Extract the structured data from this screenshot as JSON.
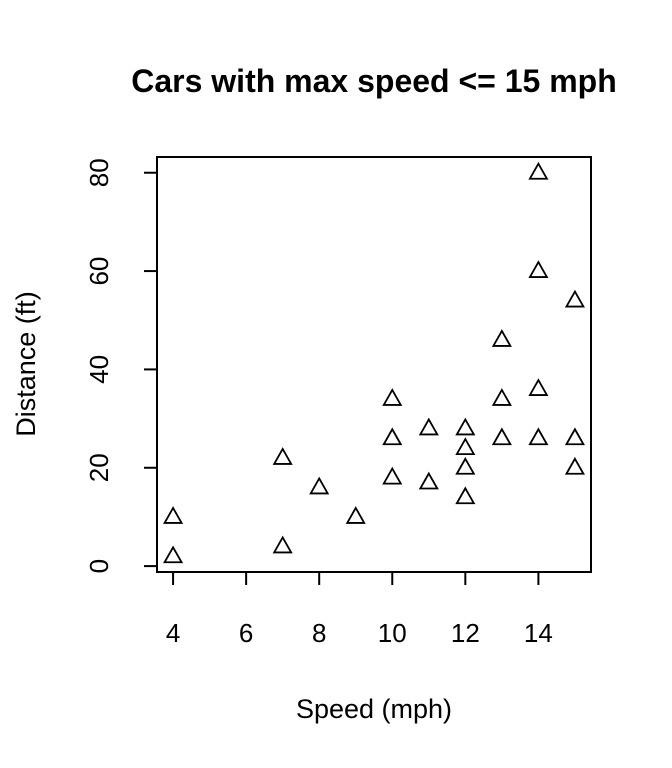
{
  "chart_data": {
    "type": "scatter",
    "title": "Cars with max speed <= 15 mph",
    "xlabel": "Speed (mph)",
    "ylabel": "Distance (ft)",
    "xlim": [
      3.56,
      15.44
    ],
    "ylim": [
      -1.2,
      83.2
    ],
    "xticks": [
      4,
      6,
      8,
      10,
      12,
      14
    ],
    "yticks": [
      0,
      20,
      40,
      60,
      80
    ],
    "marker": "triangle-open",
    "grid": false,
    "series": [
      {
        "points": [
          {
            "x": 4,
            "y": 2
          },
          {
            "x": 4,
            "y": 10
          },
          {
            "x": 7,
            "y": 4
          },
          {
            "x": 7,
            "y": 22
          },
          {
            "x": 8,
            "y": 16
          },
          {
            "x": 9,
            "y": 10
          },
          {
            "x": 10,
            "y": 18
          },
          {
            "x": 10,
            "y": 26
          },
          {
            "x": 10,
            "y": 34
          },
          {
            "x": 11,
            "y": 17
          },
          {
            "x": 11,
            "y": 28
          },
          {
            "x": 12,
            "y": 14
          },
          {
            "x": 12,
            "y": 20
          },
          {
            "x": 12,
            "y": 24
          },
          {
            "x": 12,
            "y": 28
          },
          {
            "x": 13,
            "y": 26
          },
          {
            "x": 13,
            "y": 34
          },
          {
            "x": 13,
            "y": 46
          },
          {
            "x": 14,
            "y": 26
          },
          {
            "x": 14,
            "y": 36
          },
          {
            "x": 14,
            "y": 60
          },
          {
            "x": 14,
            "y": 80
          },
          {
            "x": 15,
            "y": 20
          },
          {
            "x": 15,
            "y": 26
          },
          {
            "x": 15,
            "y": 54
          }
        ]
      }
    ]
  }
}
